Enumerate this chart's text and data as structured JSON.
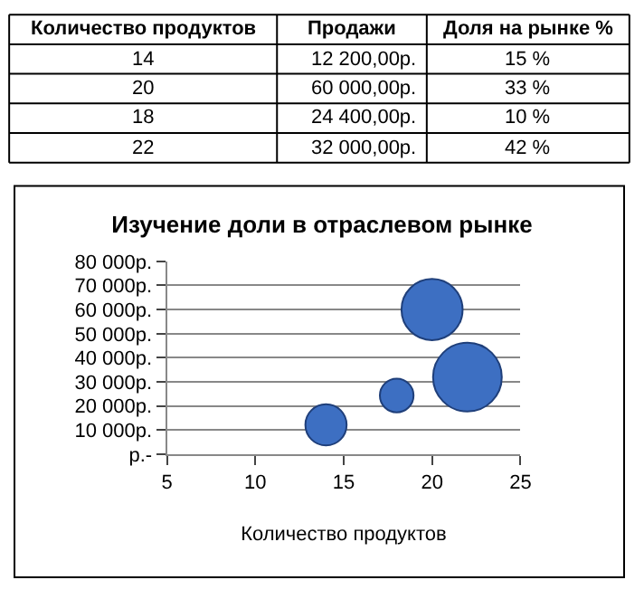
{
  "chart_data": {
    "type": "bubble",
    "title": "Изучение доли в отраслевом рынке",
    "xlabel": "Количество продуктов",
    "x": [
      14,
      20,
      18,
      22
    ],
    "values": [
      12200,
      60000,
      24400,
      32000
    ],
    "sizes": [
      0.36,
      0.79,
      0.24,
      1
    ],
    "color": "#3d6fc2",
    "xlim": [
      5,
      25
    ],
    "xticks": [
      5,
      10,
      15,
      20,
      25
    ],
    "ylim": [
      0,
      80000
    ],
    "yticks": [
      {
        "value": 0,
        "label": "р.-"
      },
      {
        "value": 10000,
        "label": "10 000р."
      },
      {
        "value": 20000,
        "label": "20 000р."
      },
      {
        "value": 30000,
        "label": "30 000р."
      },
      {
        "value": 40000,
        "label": "40 000р."
      },
      {
        "value": 50000,
        "label": "50 000р."
      },
      {
        "value": 60000,
        "label": "60 000р."
      },
      {
        "value": 70000,
        "label": "70 000р."
      },
      {
        "value": 80000,
        "label": "80 000р."
      }
    ],
    "grid": "y",
    "legend": false,
    "annotations": [
      "Количество продуктов",
      "Продажи",
      "Доля на рынке %",
      "14",
      "12 200,00р.",
      "15 %",
      "20",
      "60 000,00р.",
      "33 %",
      "18",
      "24 400,00р.",
      "10 %",
      "22",
      "32 000,00р.",
      "42 %"
    ]
  }
}
